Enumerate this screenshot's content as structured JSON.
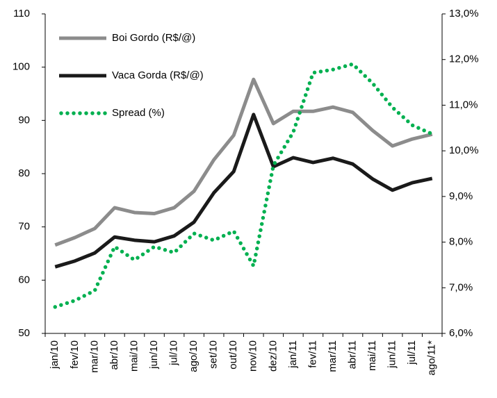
{
  "chart_data": {
    "type": "line",
    "categories": [
      "jan/10",
      "fev/10",
      "mar/10",
      "abr/10",
      "mai/10",
      "jun/10",
      "jul/10",
      "ago/10",
      "set/10",
      "out/10",
      "nov/10",
      "dez/10",
      "jan/11",
      "fev/11",
      "mar/11",
      "abr/11",
      "mai/11",
      "jun/11",
      "jul/11",
      "ago/11*"
    ],
    "series": [
      {
        "name": "Boi Gordo (R$/@)",
        "color": "#8c8c8c",
        "values": [
          66.6,
          68.0,
          69.7,
          73.6,
          72.7,
          72.5,
          73.6,
          76.7,
          82.6,
          87.2,
          97.7,
          89.4,
          91.7,
          91.7,
          92.5,
          91.5,
          88.1,
          85.2,
          86.5,
          87.4
        ]
      },
      {
        "name": "Vaca Gorda (R$/@)",
        "color": "#1a1a1a",
        "values": [
          62.5,
          63.6,
          65.1,
          68.1,
          67.5,
          67.2,
          68.3,
          70.9,
          76.4,
          80.4,
          91.1,
          81.3,
          83.0,
          82.1,
          82.9,
          81.8,
          79.0,
          76.9,
          78.3,
          79.1
        ]
      },
      {
        "name": "Spread (%)",
        "color": "#00b050",
        "axis": "y2",
        "line_style": "dotted",
        "values": [
          6.58,
          6.72,
          6.94,
          7.9,
          7.61,
          7.9,
          7.77,
          8.19,
          8.04,
          8.24,
          7.48,
          9.68,
          10.41,
          11.71,
          11.78,
          11.9,
          11.48,
          10.95,
          10.56,
          10.37
        ]
      }
    ],
    "ylim": [
      50,
      110
    ],
    "yticks": [
      50,
      60,
      70,
      80,
      90,
      100,
      110
    ],
    "y2lim": [
      6,
      13
    ],
    "y2ticks": [
      {
        "value": 6,
        "label": "6,0%"
      },
      {
        "value": 7,
        "label": "7,0%"
      },
      {
        "value": 8,
        "label": "8,0%"
      },
      {
        "value": 9,
        "label": "9,0%"
      },
      {
        "value": 10,
        "label": "10,0%"
      },
      {
        "value": 11,
        "label": "11,0%"
      },
      {
        "value": 12,
        "label": "12,0%"
      },
      {
        "value": 13,
        "label": "13,0%"
      }
    ],
    "grid": false,
    "legend": "upper left"
  }
}
